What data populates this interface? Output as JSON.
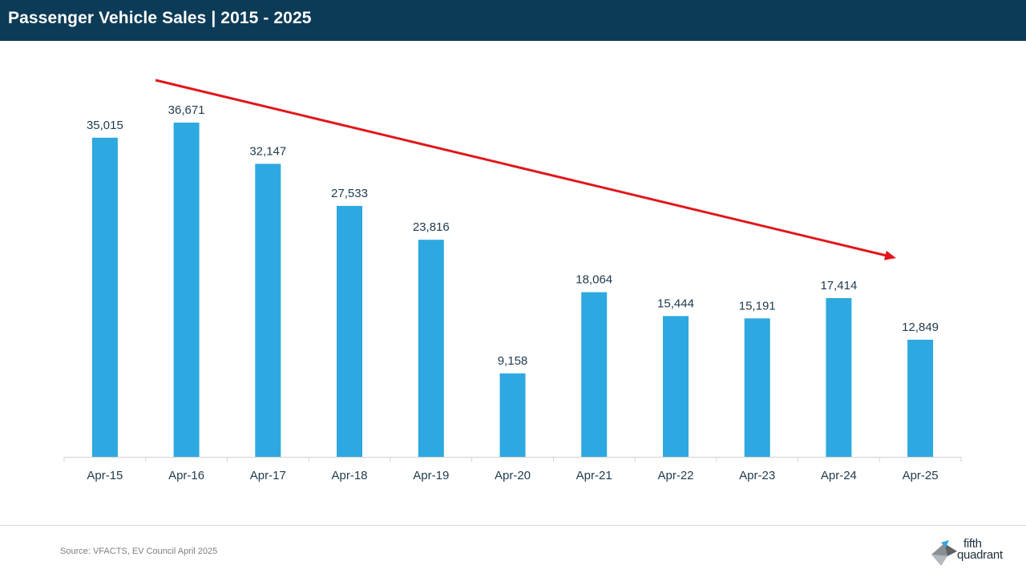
{
  "header": {
    "title": "Passenger Vehicle Sales | 2015 - 2025"
  },
  "footer": {
    "source": "Source: VFACTS, EV Council April 2025"
  },
  "logo": {
    "line1": "fifth",
    "line2": "quadrant"
  },
  "colors": {
    "header_bg": "#0c3b57",
    "bar": "#2ea8e0",
    "trend": "#e0171b",
    "text": "#1f3a4d"
  },
  "chart_data": {
    "type": "bar",
    "title": "Passenger Vehicle Sales | 2015 - 2025",
    "categories": [
      "Apr-15",
      "Apr-16",
      "Apr-17",
      "Apr-18",
      "Apr-19",
      "Apr-20",
      "Apr-21",
      "Apr-22",
      "Apr-23",
      "Apr-24",
      "Apr-25"
    ],
    "values": [
      35015,
      36671,
      32147,
      27533,
      23816,
      9158,
      18064,
      15444,
      15191,
      17414,
      12849
    ],
    "labels": [
      "35,015",
      "36,671",
      "32,147",
      "27,533",
      "23,816",
      "9,158",
      "18,064",
      "15,444",
      "15,191",
      "17,414",
      "12,849"
    ],
    "ylim": [
      0,
      40000
    ],
    "grid": false,
    "annotations": [
      {
        "type": "trend-arrow",
        "direction": "down"
      }
    ]
  }
}
